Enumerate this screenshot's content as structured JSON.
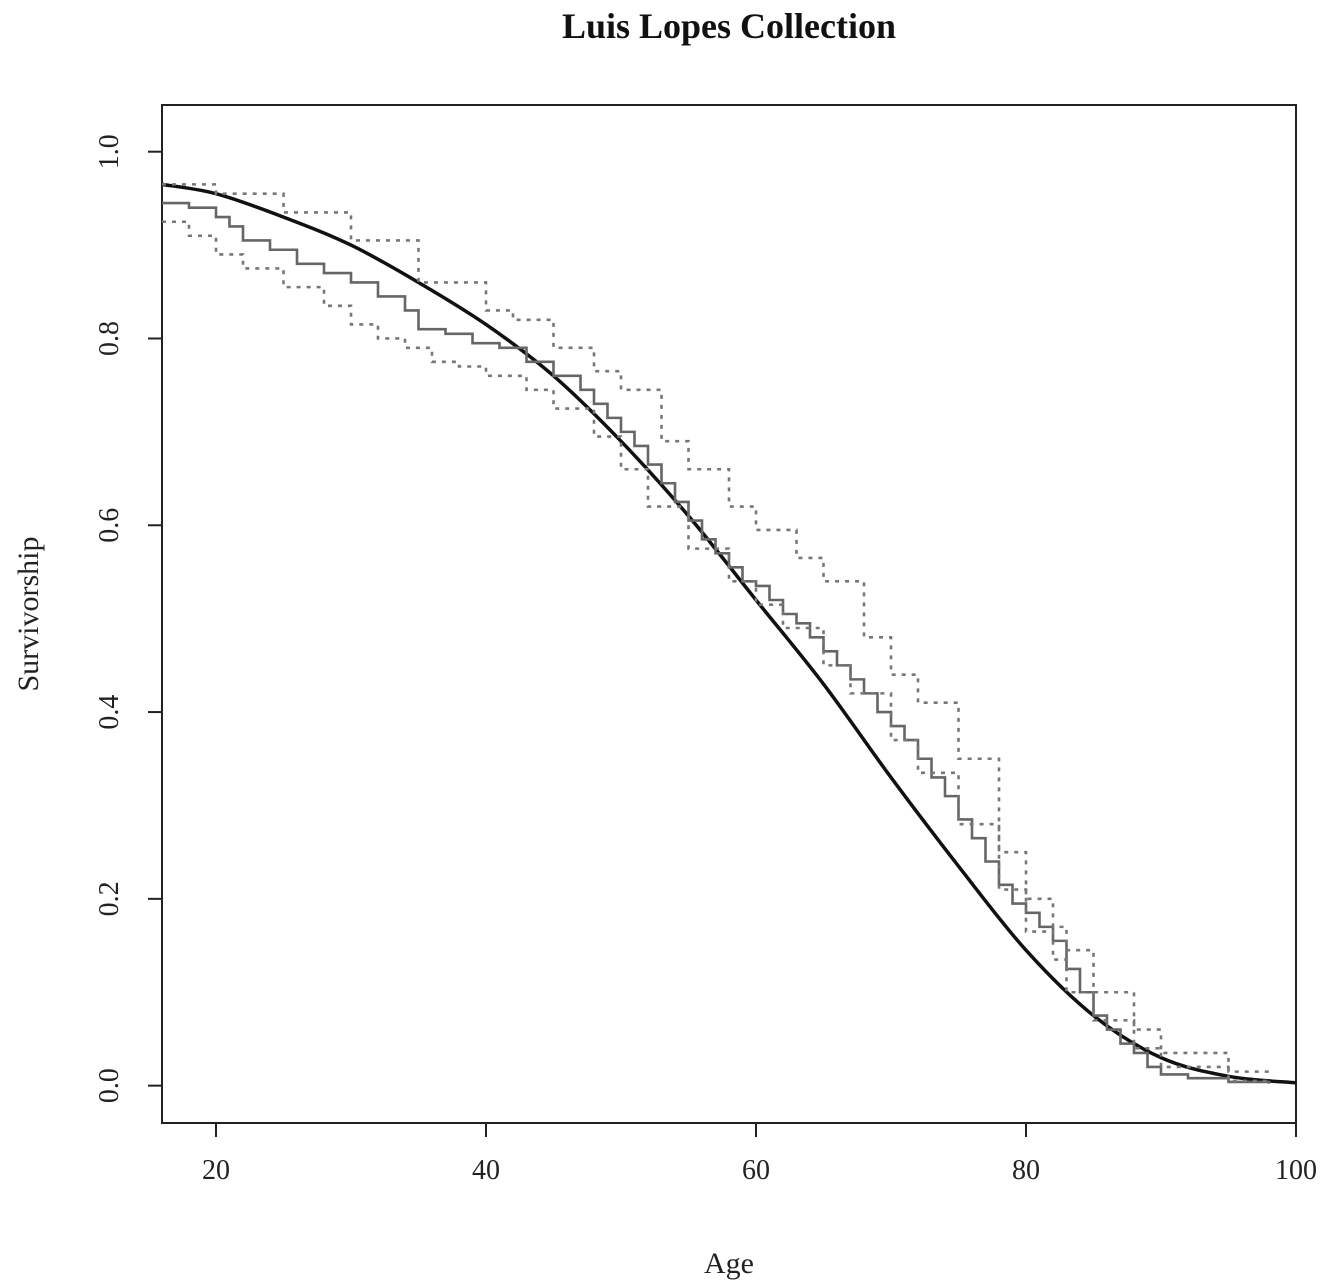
{
  "chart_data": {
    "type": "line",
    "title": "Luis Lopes Collection",
    "xlabel": "Age",
    "ylabel": "Survivorship",
    "xlim": [
      16,
      100
    ],
    "ylim": [
      -0.04,
      1.05
    ],
    "xticks": [
      "20",
      "40",
      "60",
      "80",
      "100"
    ],
    "yticks": [
      "0.0",
      "0.2",
      "0.4",
      "0.6",
      "0.8",
      "1.0"
    ],
    "grid": false,
    "legend": "none",
    "series": [
      {
        "role": "fitted-curve",
        "style": "solid-black",
        "x": [
          16,
          20,
          25,
          30,
          35,
          40,
          45,
          50,
          55,
          60,
          65,
          70,
          75,
          80,
          85,
          90,
          95,
          100
        ],
        "y": [
          0.965,
          0.955,
          0.93,
          0.9,
          0.86,
          0.815,
          0.76,
          0.69,
          0.61,
          0.52,
          0.43,
          0.33,
          0.235,
          0.145,
          0.075,
          0.03,
          0.01,
          0.003
        ]
      },
      {
        "role": "kaplan-meier-step",
        "style": "solid-gray",
        "x": [
          16,
          18,
          20,
          21,
          22,
          24,
          26,
          28,
          30,
          32,
          34,
          35,
          37,
          39,
          41,
          43,
          45,
          47,
          48,
          49,
          50,
          51,
          52,
          53,
          54,
          55,
          56,
          57,
          58,
          59,
          60,
          61,
          62,
          63,
          64,
          65,
          66,
          67,
          68,
          69,
          70,
          71,
          72,
          73,
          74,
          75,
          76,
          77,
          78,
          79,
          80,
          81,
          82,
          83,
          84,
          85,
          86,
          87,
          88,
          89,
          90,
          92,
          95,
          98
        ],
        "y": [
          0.945,
          0.94,
          0.93,
          0.92,
          0.905,
          0.895,
          0.88,
          0.87,
          0.86,
          0.845,
          0.83,
          0.81,
          0.805,
          0.795,
          0.79,
          0.775,
          0.76,
          0.745,
          0.73,
          0.715,
          0.7,
          0.685,
          0.665,
          0.645,
          0.625,
          0.605,
          0.585,
          0.57,
          0.555,
          0.54,
          0.535,
          0.52,
          0.505,
          0.495,
          0.48,
          0.465,
          0.45,
          0.435,
          0.42,
          0.4,
          0.385,
          0.37,
          0.35,
          0.33,
          0.31,
          0.285,
          0.265,
          0.24,
          0.215,
          0.195,
          0.185,
          0.17,
          0.155,
          0.125,
          0.1,
          0.075,
          0.06,
          0.045,
          0.035,
          0.02,
          0.012,
          0.008,
          0.004,
          0.002
        ]
      },
      {
        "role": "upper-confidence-band",
        "style": "dotted-gray",
        "x": [
          16,
          20,
          25,
          30,
          35,
          40,
          42,
          45,
          48,
          50,
          53,
          55,
          58,
          60,
          63,
          65,
          68,
          70,
          72,
          75,
          78,
          80,
          82,
          83,
          85,
          88,
          90,
          95,
          98
        ],
        "y": [
          0.965,
          0.955,
          0.935,
          0.905,
          0.86,
          0.83,
          0.82,
          0.79,
          0.765,
          0.745,
          0.69,
          0.66,
          0.62,
          0.595,
          0.565,
          0.54,
          0.48,
          0.44,
          0.41,
          0.35,
          0.25,
          0.2,
          0.17,
          0.145,
          0.1,
          0.06,
          0.035,
          0.015,
          0.01
        ]
      },
      {
        "role": "lower-confidence-band",
        "style": "dotted-gray",
        "x": [
          16,
          18,
          20,
          22,
          25,
          28,
          30,
          32,
          34,
          36,
          38,
          40,
          43,
          45,
          48,
          50,
          52,
          55,
          58,
          60,
          62,
          65,
          67,
          70,
          72,
          75,
          78,
          80,
          82,
          83,
          85,
          88,
          90,
          95,
          98
        ],
        "y": [
          0.925,
          0.91,
          0.89,
          0.875,
          0.855,
          0.835,
          0.815,
          0.8,
          0.79,
          0.775,
          0.77,
          0.76,
          0.745,
          0.725,
          0.695,
          0.66,
          0.62,
          0.575,
          0.54,
          0.515,
          0.49,
          0.45,
          0.42,
          0.37,
          0.335,
          0.28,
          0.21,
          0.165,
          0.135,
          0.1,
          0.07,
          0.04,
          0.02,
          0.005,
          0.002
        ]
      }
    ]
  }
}
